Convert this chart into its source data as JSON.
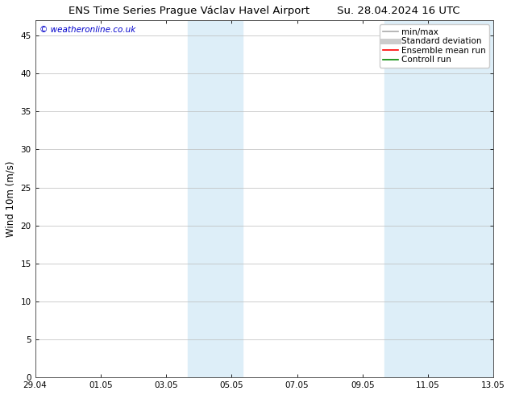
{
  "title": "ENS Time Series Prague Václav Havel Airport        Su. 28.04.2024 16 UTC",
  "ylabel": "Wind 10m (m/s)",
  "watermark": "© weatheronline.co.uk",
  "watermark_color": "#0000cc",
  "ylim": [
    0,
    47
  ],
  "yticks": [
    0,
    5,
    10,
    15,
    20,
    25,
    30,
    35,
    40,
    45
  ],
  "x_start_num": 0,
  "x_end_num": 14,
  "xtick_labels": [
    "29.04",
    "01.05",
    "03.05",
    "05.05",
    "07.05",
    "09.05",
    "11.05",
    "13.05"
  ],
  "xtick_positions": [
    0,
    2,
    4,
    6,
    8,
    10,
    12,
    14
  ],
  "shaded_regions": [
    {
      "x_start": 4.67,
      "x_end": 6.33
    },
    {
      "x_start": 10.67,
      "x_end": 14.0
    }
  ],
  "shaded_color": "#ddeef8",
  "background_color": "#ffffff",
  "plot_background": "#ffffff",
  "grid_color": "#bbbbbb",
  "legend_entries": [
    {
      "label": "min/max",
      "color": "#aaaaaa",
      "lw": 1.2,
      "style": "solid"
    },
    {
      "label": "Standard deviation",
      "color": "#cccccc",
      "lw": 5,
      "style": "solid"
    },
    {
      "label": "Ensemble mean run",
      "color": "#ff0000",
      "lw": 1.2,
      "style": "solid"
    },
    {
      "label": "Controll run",
      "color": "#008800",
      "lw": 1.2,
      "style": "solid"
    }
  ],
  "title_fontsize": 9.5,
  "axis_fontsize": 8.5,
  "tick_fontsize": 7.5,
  "watermark_fontsize": 7.5,
  "legend_fontsize": 7.5
}
